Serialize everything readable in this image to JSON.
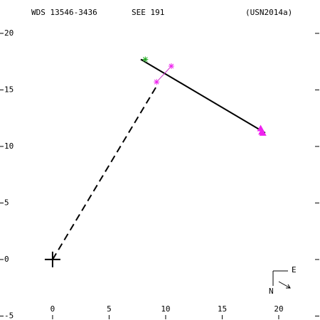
{
  "chart_data": {
    "type": "scatter",
    "title": "WDS 13546-3436",
    "subtitle": "SEE 191",
    "reference": "(USN2014a)",
    "compass": {
      "east": "E",
      "north": "N"
    },
    "xlim": [
      -4.65,
      23.65
    ],
    "ylim": [
      -5.35,
      22.95
    ],
    "xticks": [
      0,
      5,
      10,
      15,
      20
    ],
    "yticks": [
      20,
      15,
      10,
      5,
      0,
      -5
    ],
    "series": [
      {
        "color": "#000000",
        "line": "solid",
        "x": [
          7.8,
          18.8
        ],
        "values": [
          17.7,
          11.2
        ]
      },
      {
        "color": "#000000",
        "line": "dashed",
        "x": [
          0,
          9.3
        ],
        "values": [
          0,
          15.5
        ]
      },
      {
        "color": "#cc33cc",
        "line": "solid",
        "x": [
          9.2,
          10.5
        ],
        "values": [
          15.7,
          17.1
        ]
      },
      {
        "color": "#22aa22",
        "marker": "star",
        "x": [
          8.2
        ],
        "values": [
          17.7
        ]
      },
      {
        "color": "#ee22ee",
        "marker": "star",
        "x": [
          9.2,
          10.5
        ],
        "values": [
          15.7,
          17.1
        ]
      },
      {
        "color": "#ee22ee",
        "marker": "triangle",
        "x": [
          18.4,
          18.5,
          18.6
        ],
        "values": [
          11.6,
          11.3,
          11.2
        ]
      },
      {
        "color": "#000000",
        "marker": "cross",
        "x": [
          0
        ],
        "values": [
          0
        ]
      }
    ]
  }
}
